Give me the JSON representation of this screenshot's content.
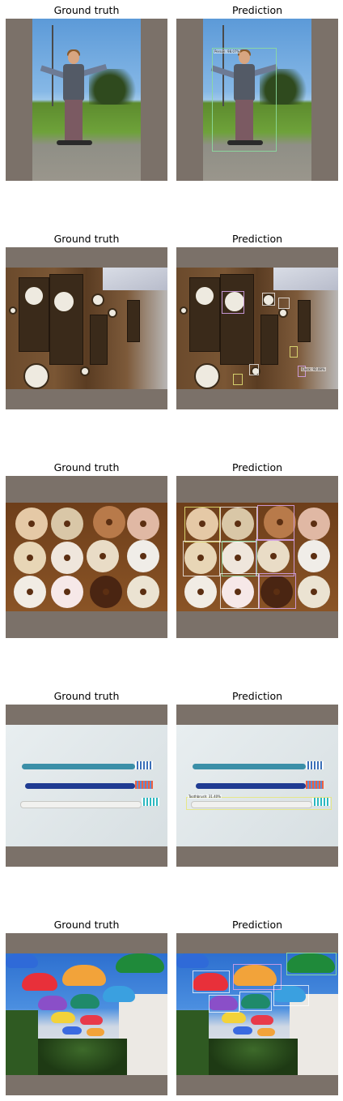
{
  "figure": {
    "rows": [
      {
        "left_title": "Ground truth",
        "right_title": "Prediction",
        "pred_labels": [
          "Person: 98.07%"
        ]
      },
      {
        "left_title": "Ground truth",
        "right_title": "Prediction",
        "pred_labels": [
          "Clock: 92.08%"
        ]
      },
      {
        "left_title": "Ground truth",
        "right_title": "Prediction",
        "pred_labels": []
      },
      {
        "left_title": "Ground truth",
        "right_title": "Prediction",
        "pred_labels": [
          "Toothbrush: 31.40%"
        ]
      },
      {
        "left_title": "Ground truth",
        "right_title": "Prediction",
        "pred_labels": []
      }
    ]
  },
  "colors": {
    "padding": "#7b7169",
    "background": "#ffffff"
  }
}
